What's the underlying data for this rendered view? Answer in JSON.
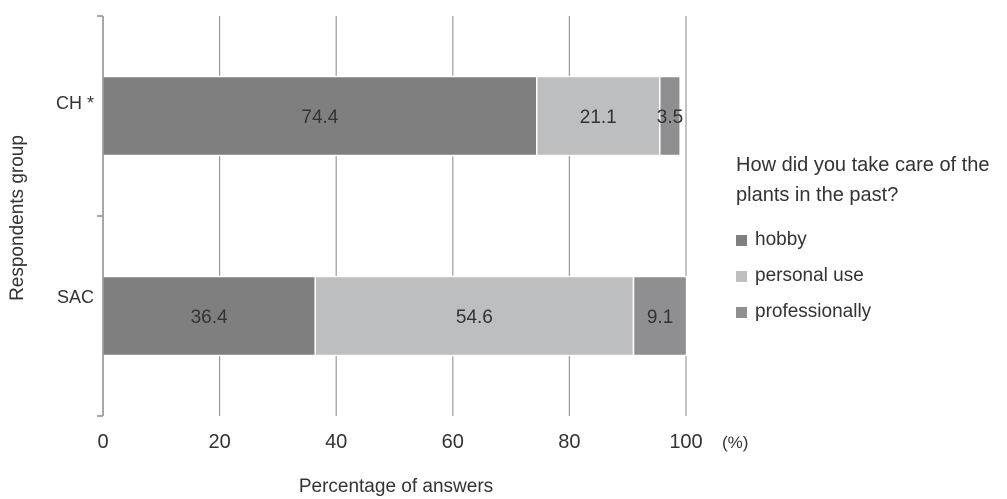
{
  "chart_data": {
    "type": "bar",
    "orientation": "horizontal",
    "stacked": true,
    "categories": [
      "CH *",
      "SAC"
    ],
    "series": [
      {
        "name": "hobby",
        "values": [
          74.4,
          36.4
        ],
        "color": "#7f7f80"
      },
      {
        "name": "personal use",
        "values": [
          21.1,
          54.6
        ],
        "color": "#bdbec0"
      },
      {
        "name": "professionally",
        "values": [
          3.5,
          9.1
        ],
        "color": "#8f8f91"
      }
    ],
    "xlim": [
      0,
      100
    ],
    "xticks": [
      0,
      20,
      40,
      60,
      80,
      100
    ],
    "x_unit": "(%)",
    "xlabel": "Percentage of answers",
    "ylabel": "Respondents group",
    "grid": "vertical",
    "legend_title": "How did you take care of the plants in the past?",
    "legend_position": "right"
  }
}
